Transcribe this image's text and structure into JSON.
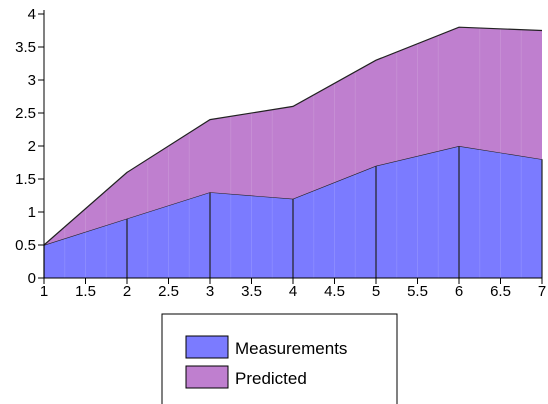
{
  "chart_data": {
    "type": "area",
    "stacked": true,
    "x": [
      1,
      2,
      3,
      4,
      5,
      6,
      7
    ],
    "series": [
      {
        "name": "Measurements",
        "values": [
          0.5,
          0.9,
          1.3,
          1.2,
          1.7,
          2.0,
          1.8
        ],
        "color": "#7b7bff"
      },
      {
        "name": "Predicted",
        "values": [
          0.0,
          0.7,
          1.1,
          1.4,
          1.6,
          1.8,
          1.95
        ],
        "color": "#bf7fcf"
      }
    ],
    "xlim": [
      1,
      7
    ],
    "ylim": [
      0,
      4
    ],
    "xticks": [
      "1",
      "1.5",
      "2",
      "2.5",
      "3",
      "3.5",
      "4",
      "4.5",
      "5",
      "5.5",
      "6",
      "6.5",
      "7"
    ],
    "yticks": [
      "0",
      "0.5",
      "1",
      "1.5",
      "2",
      "2.5",
      "3",
      "3.5",
      "4"
    ],
    "grid": false,
    "legend_position": "bottom",
    "title": "",
    "xlabel": "",
    "ylabel": ""
  }
}
